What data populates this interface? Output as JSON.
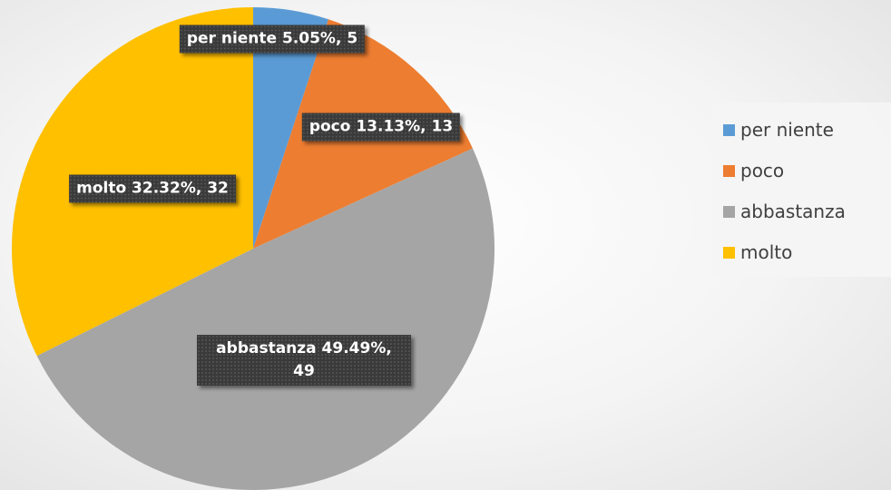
{
  "chart_data": {
    "type": "pie",
    "categories": [
      "per niente",
      "poco",
      "abbastanza",
      "molto"
    ],
    "values": [
      5,
      13,
      49,
      32
    ],
    "value_labels": [
      "per niente 5.05%, 5",
      "poco 13.13%, 13",
      "abbastanza 49.49%, 49",
      "molto 32.32%, 32"
    ],
    "colors": [
      "#5b9bd5",
      "#ed7d31",
      "#a5a5a5",
      "#ffc000"
    ],
    "legend": "right"
  }
}
